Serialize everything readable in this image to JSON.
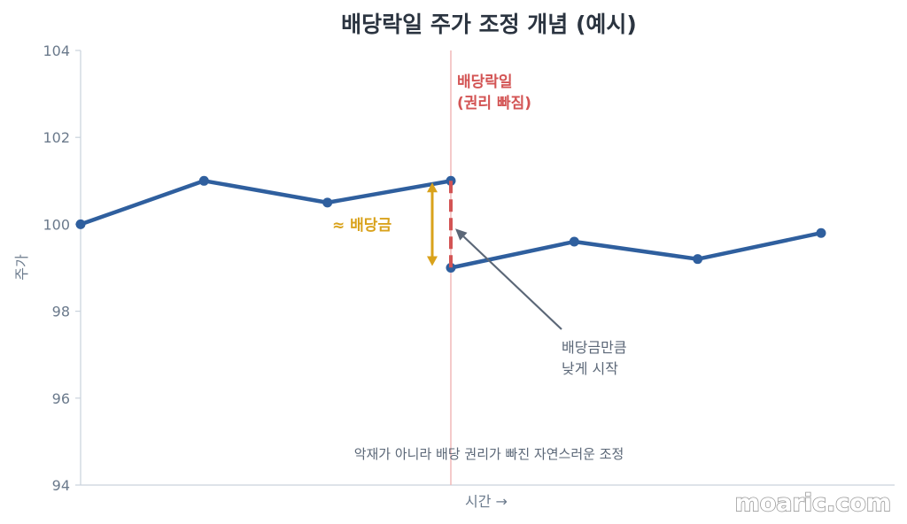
{
  "chart_data": {
    "type": "line",
    "title": "배당락일 주가 조정 개념 (예시)",
    "xlabel": "시간 →",
    "ylabel": "주가",
    "ylim": [
      94,
      104
    ],
    "yticks": [
      "94",
      "96",
      "98",
      "100",
      "102",
      "104"
    ],
    "grid": false,
    "series": [
      {
        "segments": [
          {
            "x": [
              0,
              1,
              2,
              3
            ],
            "y": [
              100,
              101,
              100.5,
              101
            ]
          },
          {
            "x": [
              3,
              4,
              5,
              6
            ],
            "y": [
              99,
              99.6,
              99.2,
              99.8
            ]
          }
        ]
      }
    ],
    "xlim": [
      0,
      6.0
    ],
    "annotations": {
      "ex_dividend_label_line1": "배당락일",
      "ex_dividend_label_line2": "(권리 빠짐)",
      "dividend_gap_label": "≈ 배당금",
      "arrow_label_line1": "배당금만큼",
      "arrow_label_line2": "낮게 시작",
      "bottom_note": "악재가 아니라 배당 권리가 빠진 자연스러운 조정"
    },
    "colors": {
      "line": "#2f5f9e",
      "ex_dividend": "#d35454",
      "dividend": "#d9a21b",
      "arrow": "#5b6777"
    }
  },
  "watermark": "moaric.com"
}
